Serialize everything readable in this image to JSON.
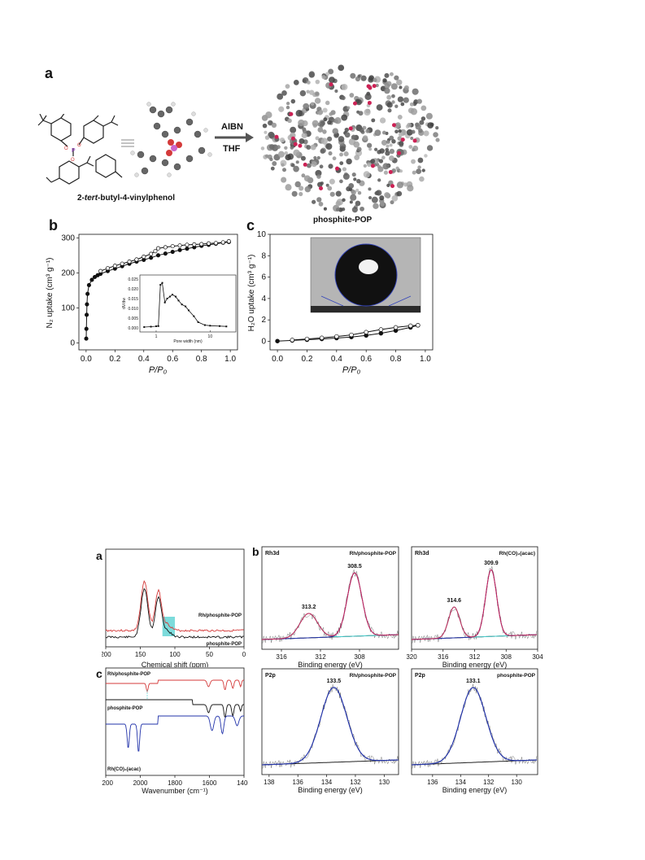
{
  "figure1": {
    "panel_a": {
      "label": "a",
      "molecule_name_prefix": "2-",
      "molecule_name_italic": "tert",
      "molecule_name_suffix": "-butyl-4-vinylphenol",
      "reaction_reagent_1": "AIBN",
      "reaction_reagent_2": "THF",
      "product_name": "phosphite-POP",
      "atom_o": "O",
      "atom_p": "P"
    },
    "panel_b": {
      "label": "b",
      "xlabel": "P/P₀",
      "ylabel": "N₂ uptake (cm³ g⁻¹)",
      "inset_xlabel": "Pore width (nm)",
      "inset_ylabel": "dV/dw"
    },
    "panel_c": {
      "label": "c",
      "xlabel": "P/P₀",
      "ylabel": "H₂O uptake (cm³ g⁻¹)"
    }
  },
  "chart_data": [
    {
      "type": "scatter",
      "id": "n2_isotherm",
      "xlabel": "P/P₀",
      "ylabel": "N₂ uptake (cm³ g⁻¹)",
      "xlim": [
        -0.05,
        1.05
      ],
      "ylim": [
        -20,
        310
      ],
      "xticks": [
        "0.0",
        "0.2",
        "0.4",
        "0.6",
        "0.8",
        "1.0"
      ],
      "yticks": [
        "0",
        "100",
        "200",
        "300"
      ],
      "series": [
        {
          "values_x": [
            0.001,
            0.002,
            0.004,
            0.006,
            0.01,
            0.02,
            0.04,
            0.06,
            0.08,
            0.1,
            0.15,
            0.2,
            0.25,
            0.3,
            0.35,
            0.4,
            0.45,
            0.5,
            0.55,
            0.6,
            0.65,
            0.7,
            0.75,
            0.8,
            0.85,
            0.9,
            0.95,
            0.99
          ],
          "values_y": [
            12,
            40,
            80,
            110,
            140,
            165,
            180,
            188,
            193,
            197,
            205,
            212,
            219,
            226,
            232,
            237,
            243,
            250,
            255,
            260,
            265,
            269,
            273,
            277,
            280,
            283,
            286,
            288
          ]
        },
        {
          "values_x": [
            0.99,
            0.95,
            0.9,
            0.85,
            0.8,
            0.75,
            0.7,
            0.65,
            0.6,
            0.55,
            0.5,
            0.48,
            0.45,
            0.4,
            0.35,
            0.3,
            0.25,
            0.2,
            0.15,
            0.1
          ],
          "values_y": [
            290,
            287,
            285,
            284,
            282,
            281,
            280,
            278,
            276,
            273,
            270,
            262,
            254,
            246,
            238,
            232,
            226,
            220,
            213,
            205
          ]
        }
      ]
    },
    {
      "type": "line",
      "id": "pore_size_inset",
      "xlabel": "Pore width (nm)",
      "ylabel": "dV/dw",
      "xscale": "log",
      "xlim": [
        0.5,
        30
      ],
      "ylim": [
        -0.002,
        0.027
      ],
      "yticks": [
        "0.000",
        "0.005",
        "0.010",
        "0.015",
        "0.020",
        "0.025"
      ],
      "xticks": [
        "1",
        "10"
      ],
      "x": [
        0.6,
        0.8,
        1.0,
        1.1,
        1.2,
        1.3,
        1.45,
        1.6,
        1.8,
        2.0,
        2.3,
        2.6,
        3.0,
        3.5,
        4.0,
        5.0,
        6.0,
        8.0,
        10,
        15,
        20
      ],
      "y": [
        0.0005,
        0.0007,
        0.0009,
        0.001,
        0.022,
        0.023,
        0.013,
        0.015,
        0.016,
        0.017,
        0.016,
        0.014,
        0.012,
        0.011,
        0.009,
        0.006,
        0.003,
        0.0015,
        0.0012,
        0.001,
        0.0008
      ]
    },
    {
      "type": "line",
      "id": "h2o_isotherm",
      "xlabel": "P/P₀",
      "ylabel": "H₂O uptake (cm³ g⁻¹)",
      "xlim": [
        -0.05,
        1.05
      ],
      "ylim": [
        -0.8,
        10
      ],
      "xticks": [
        "0.0",
        "0.2",
        "0.4",
        "0.6",
        "0.8",
        "1.0"
      ],
      "yticks": [
        "0",
        "2",
        "4",
        "6",
        "8",
        "10"
      ],
      "series": [
        {
          "values_x": [
            0.0,
            0.1,
            0.2,
            0.3,
            0.4,
            0.5,
            0.6,
            0.7,
            0.8,
            0.9,
            0.95
          ],
          "values_y": [
            0.02,
            0.08,
            0.15,
            0.22,
            0.3,
            0.4,
            0.55,
            0.75,
            1.0,
            1.3,
            1.5
          ]
        },
        {
          "values_x": [
            0.95,
            0.9,
            0.8,
            0.7,
            0.6,
            0.5,
            0.4,
            0.3,
            0.2,
            0.1
          ],
          "values_y": [
            1.5,
            1.45,
            1.3,
            1.1,
            0.85,
            0.6,
            0.45,
            0.32,
            0.22,
            0.12
          ]
        }
      ]
    },
    {
      "type": "line",
      "id": "nmr",
      "xlabel": "Chemical shift (ppm)",
      "xlim": [
        200,
        0
      ],
      "xticks": [
        "200",
        "150",
        "100",
        "50",
        "0"
      ],
      "legend": [
        "Rh/phosphite-POP",
        "phosphite-POP"
      ]
    },
    {
      "type": "line",
      "id": "ir",
      "xlabel": "Wavenumber (cm⁻¹)",
      "xlim": [
        2200,
        1400
      ],
      "xticks": [
        "2200",
        "2000",
        "1800",
        "1600",
        "1400"
      ],
      "legend": [
        "Rh/phosphite-POP",
        "phosphite-POP",
        "Rh(CO)₂(acac)"
      ]
    },
    {
      "type": "line",
      "id": "xps_rh_pop",
      "title_left": "Rh3d",
      "title_right": "Rh/phosphite-POP",
      "xlabel": "Binding energy (eV)",
      "xlim": [
        318,
        304
      ],
      "xticks": [
        "316",
        "312",
        "308"
      ],
      "peaks": [
        {
          "x": 313.2,
          "label": "313.2"
        },
        {
          "x": 308.5,
          "label": "308.5"
        }
      ]
    },
    {
      "type": "line",
      "id": "xps_rh_acac",
      "title_left": "Rh3d",
      "title_right": "Rh(CO)₂(acac)",
      "xlabel": "Binding energy (eV)",
      "xlim": [
        320,
        304
      ],
      "xticks": [
        "320",
        "316",
        "312",
        "308",
        "304"
      ],
      "peaks": [
        {
          "x": 314.6,
          "label": "314.6"
        },
        {
          "x": 309.9,
          "label": "309.9"
        }
      ]
    },
    {
      "type": "line",
      "id": "xps_p_rh",
      "title_left": "P2p",
      "title_right": "Rh/phosphite-POP",
      "xlabel": "Binding energy (eV)",
      "xlim": [
        138.5,
        129
      ],
      "xticks": [
        "138",
        "136",
        "134",
        "132",
        "130"
      ],
      "peaks": [
        {
          "x": 133.5,
          "label": "133.5"
        }
      ]
    },
    {
      "type": "line",
      "id": "xps_p_pop",
      "title_left": "P2p",
      "title_right": "phosphite-POP",
      "xlabel": "Binding energy (eV)",
      "xlim": [
        137.5,
        128.5
      ],
      "xticks": [
        "136",
        "134",
        "132",
        "130"
      ],
      "peaks": [
        {
          "x": 133.1,
          "label": "133.1"
        }
      ]
    }
  ],
  "figure2": {
    "panel_a_label": "a",
    "panel_b_label": "b",
    "panel_c_label": "c"
  },
  "colors": {
    "red": "#d43a3a",
    "black": "#111111",
    "blue": "#2233aa",
    "cyan": "#44cccc",
    "magenta": "#cc2255"
  }
}
